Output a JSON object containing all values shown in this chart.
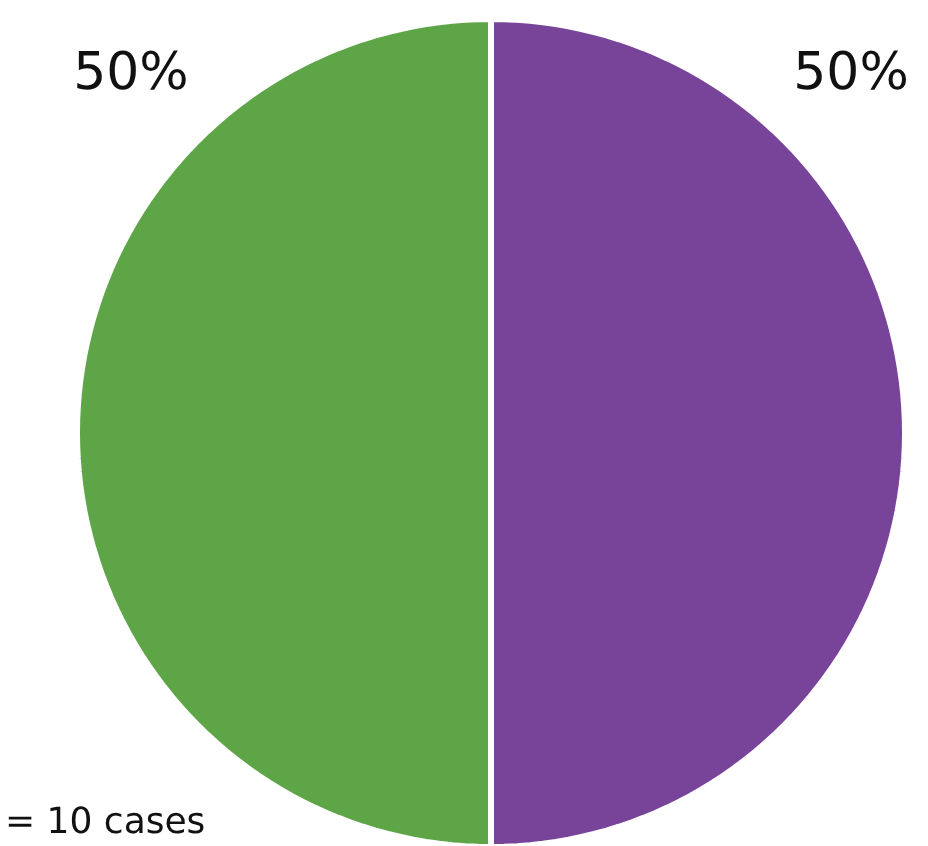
{
  "chart_data": {
    "type": "pie",
    "categories": [
      null,
      null
    ],
    "values": [
      50,
      50
    ],
    "colors": [
      "#774499",
      "#5ea547"
    ],
    "value_labels": [
      "50%",
      "50%"
    ],
    "annotations": [
      "= 10 cases"
    ]
  }
}
